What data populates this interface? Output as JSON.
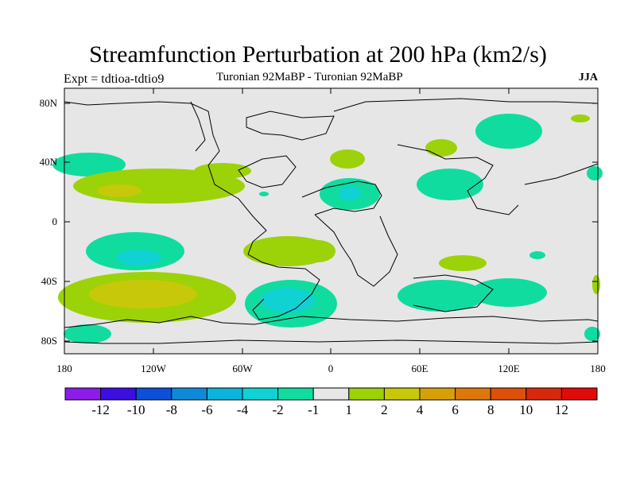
{
  "title": "Streamfunction Perturbation at 200 hPa (km2/s)",
  "subtitle_left": "Expt = tdtioa-tdtio9",
  "subtitle_center": "Turonian  92MaBP - Turonian  92MaBP",
  "subtitle_right": "JJA",
  "lat_labels": [
    "80N",
    "40N",
    "0",
    "40S",
    "80S"
  ],
  "lon_labels": [
    "180",
    "120W",
    "60W",
    "0",
    "60E",
    "120E",
    "180"
  ],
  "colorbar": {
    "labels": [
      "-12",
      "-10",
      "-8",
      "-6",
      "-4",
      "-2",
      "-1",
      "1",
      "2",
      "4",
      "6",
      "8",
      "10",
      "12"
    ],
    "colors": [
      "#8c1ce8",
      "#3c0ee0",
      "#0d50d8",
      "#0e8ad8",
      "#0cb4dc",
      "#10d2d2",
      "#10dca0",
      "#e6e6e6",
      "#9cd208",
      "#c8c80a",
      "#d8a008",
      "#dc780c",
      "#dc500c",
      "#d8280c",
      "#e00a0a"
    ]
  },
  "colors": {
    "background": "#e6e6e6",
    "neg_weak": "#10dca0",
    "neg_mid": "#10d2d2",
    "pos_weak": "#9cd208",
    "pos_mid": "#c8c80a"
  }
}
